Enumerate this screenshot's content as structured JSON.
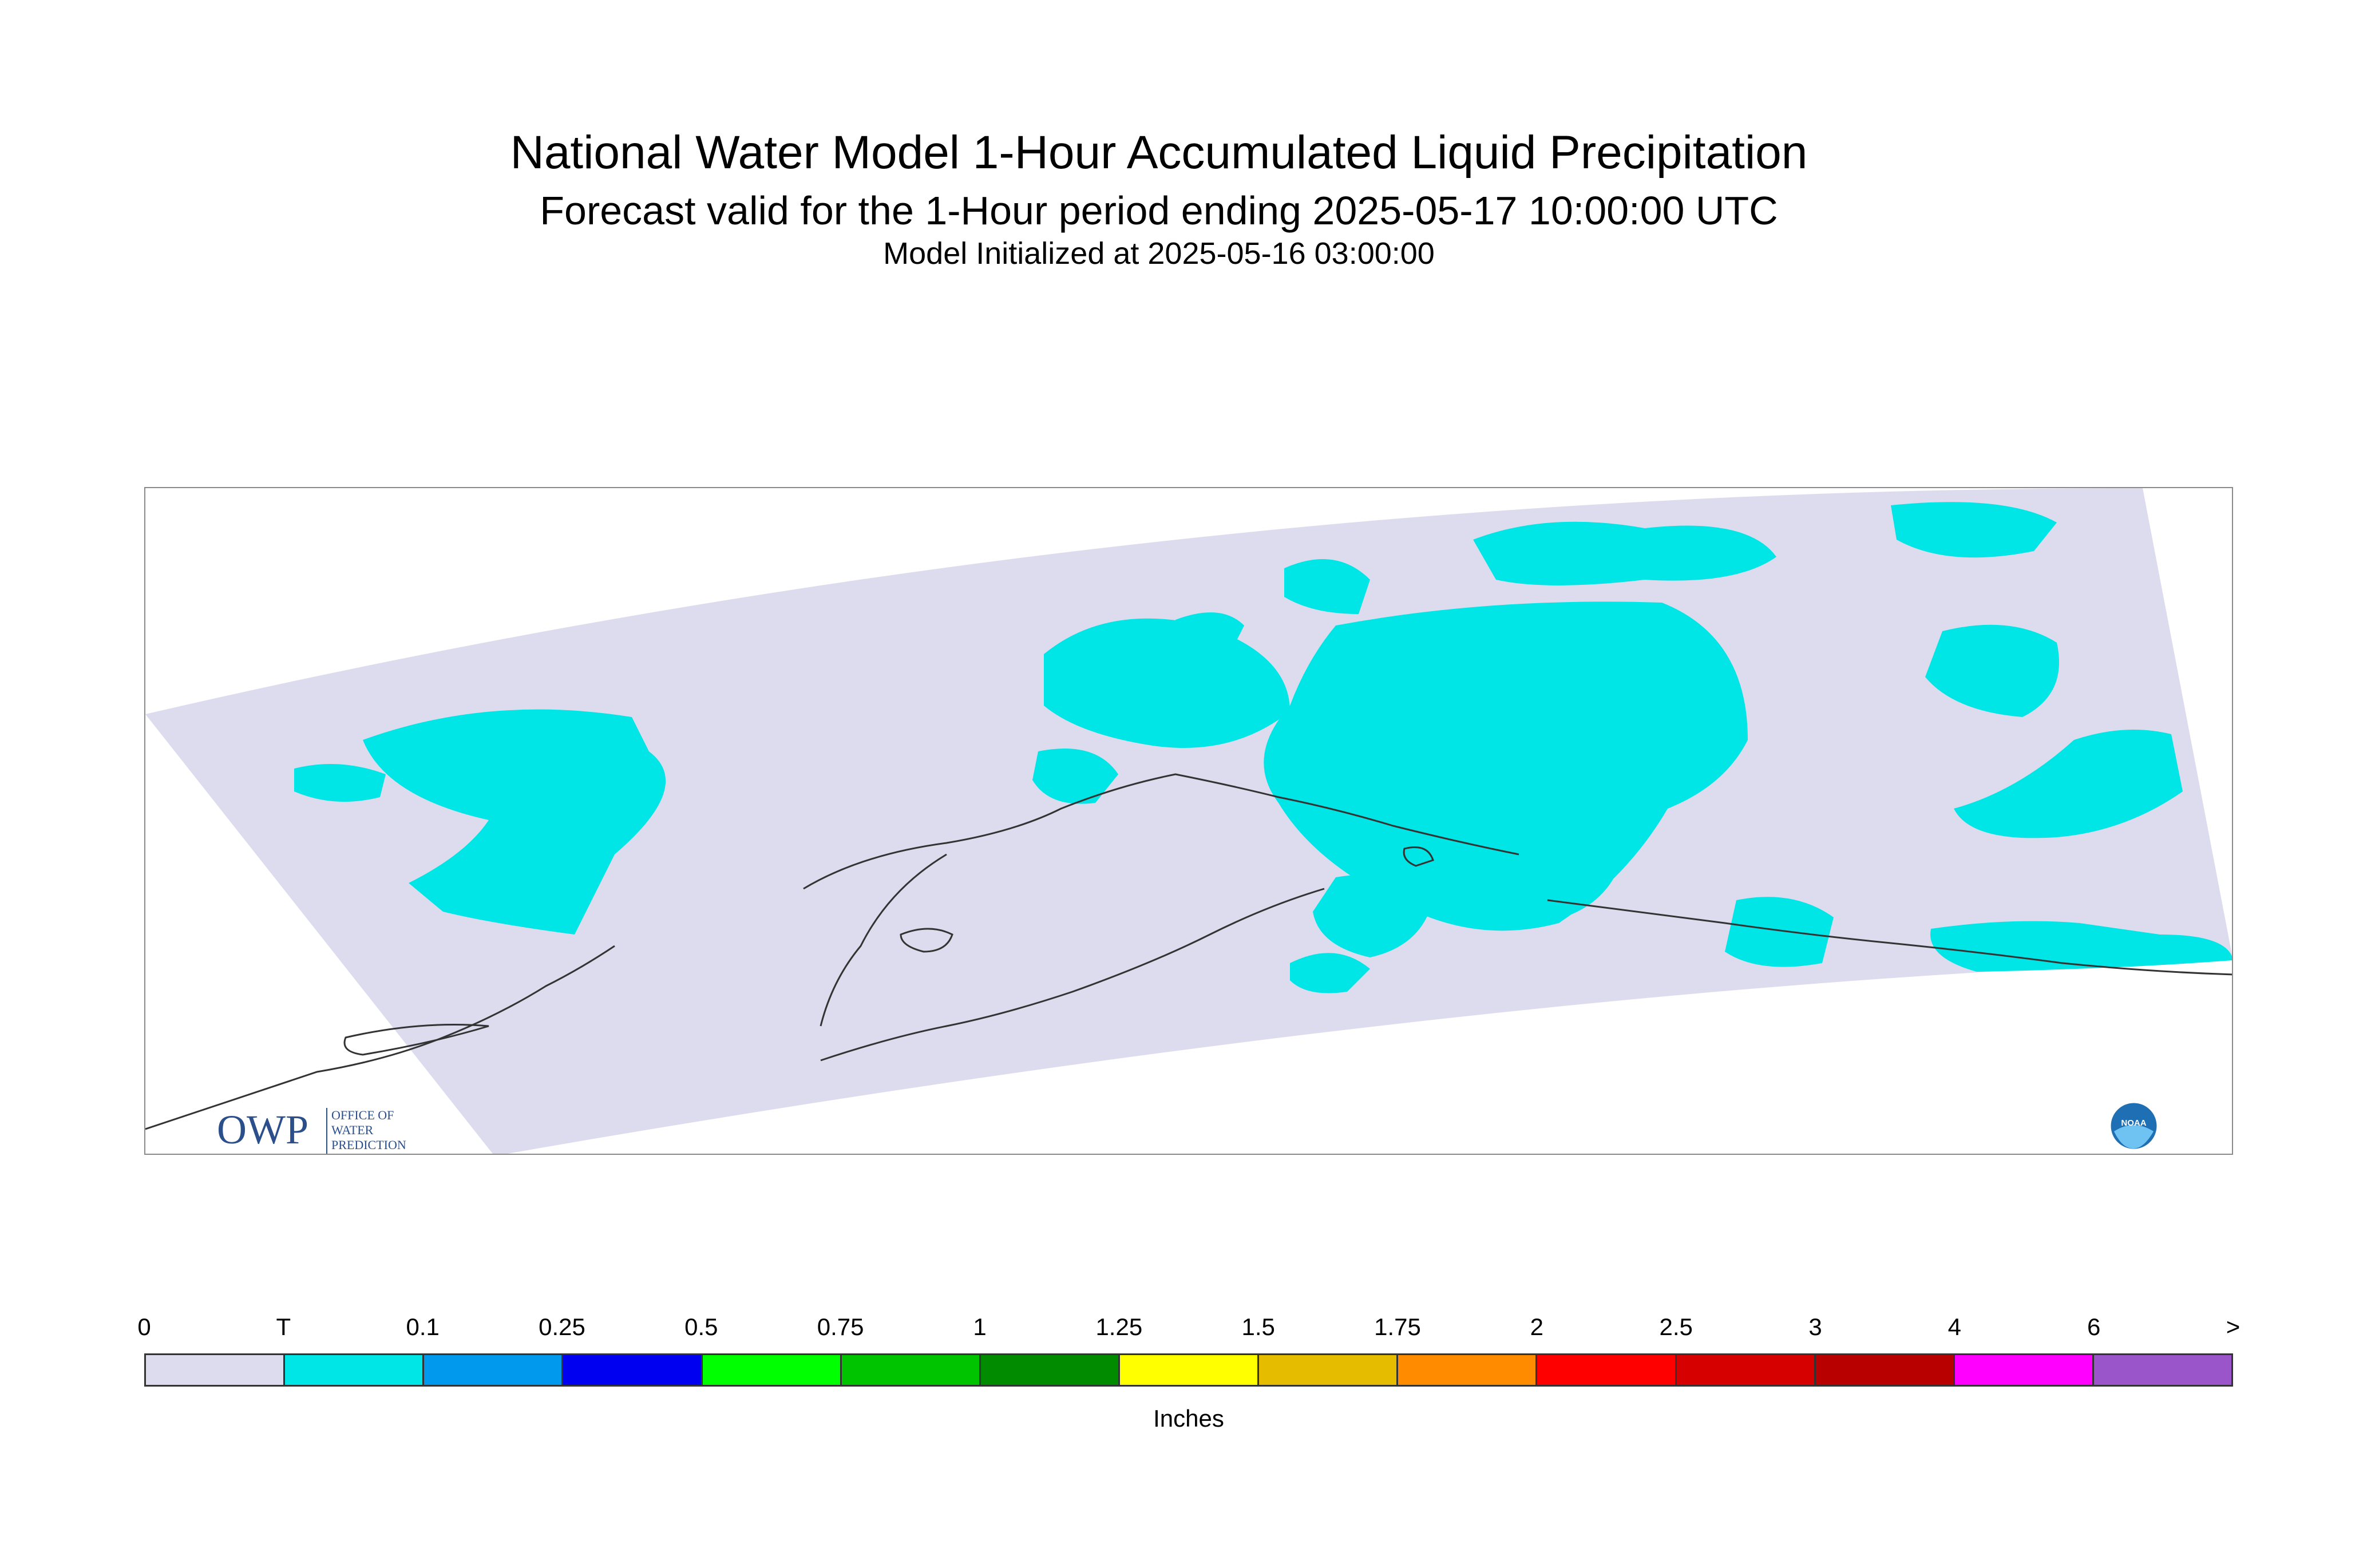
{
  "header": {
    "title": "National Water Model 1-Hour Accumulated Liquid Precipitation",
    "subtitle": "Forecast valid for the 1-Hour period ending 2025-05-17 10:00:00 UTC",
    "init": "Model Initialized at 2025-05-16 03:00:00"
  },
  "map": {
    "domain_color": "#dcdcee",
    "trace_color": "#00e5e5",
    "coast_color": "#333333",
    "frame_color": "#8a8a8a"
  },
  "logos": {
    "owp": {
      "name": "owp-logo",
      "mark": "OWP",
      "line1": "OFFICE OF",
      "line2": "WATER",
      "line3": "PREDICTION",
      "color": "#2b4f8a"
    },
    "noaa": {
      "name": "noaa-logo",
      "mark": "NOAA",
      "color": "#1f6fb5"
    }
  },
  "legend": {
    "units": "Inches",
    "labels": [
      "0",
      "T",
      "0.1",
      "0.25",
      "0.5",
      "0.75",
      "1",
      "1.25",
      "1.5",
      "1.75",
      "2",
      "2.5",
      "3",
      "4",
      "6",
      ">"
    ],
    "colors": [
      "#dcdcee",
      "#00e5e5",
      "#0099ee",
      "#0000f0",
      "#00ff00",
      "#00c400",
      "#008b00",
      "#ffff00",
      "#e5bc00",
      "#ff8c00",
      "#ff0000",
      "#d60000",
      "#b80000",
      "#ff00ff",
      "#9955c9"
    ]
  }
}
